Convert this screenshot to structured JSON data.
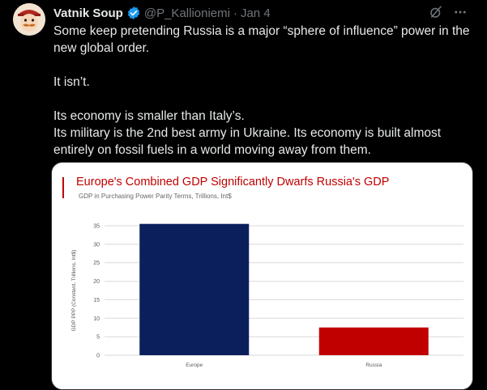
{
  "tweet": {
    "author_name": "Vatnik Soup",
    "handle": "@P_Kallioniemi",
    "separator": "·",
    "date": "Jan 4",
    "paragraphs": [
      "Some keep pretending Russia is a major “sphere of influence” power in the new global order.",
      "It isn’t.",
      "Its economy is smaller than Italy’s.",
      "Its military is the 2nd best army in Ukraine. Its economy is built almost entirely on fossil fuels in a world moving away from them."
    ]
  },
  "icons": {
    "verified": "verified-badge-icon",
    "grok": "grok-icon",
    "more": "more-icon",
    "avatar": "avatar"
  },
  "colors": {
    "background": "#000000",
    "verified_blue": "#1d9bf0",
    "europe_bar": "#0a1f5c",
    "russia_bar": "#c00000",
    "chart_title": "#c00000"
  },
  "chart_data": {
    "type": "bar",
    "title": "Europe's Combined GDP Significantly Dwarfs Russia's GDP",
    "subtitle": "GDP in Purchasing Power Parity Terms, Trillions, Int$",
    "ylabel": "GDP PPP (Constant, Trillions, Int$)",
    "xlabel": "",
    "categories": [
      "Europe",
      "Russia"
    ],
    "values": [
      35.5,
      7.5
    ],
    "bar_colors": [
      "#0a1f5c",
      "#c00000"
    ],
    "ylim": [
      0,
      35
    ],
    "yticks": [
      0,
      5,
      10,
      15,
      20,
      25,
      30,
      35
    ],
    "grid": true
  }
}
